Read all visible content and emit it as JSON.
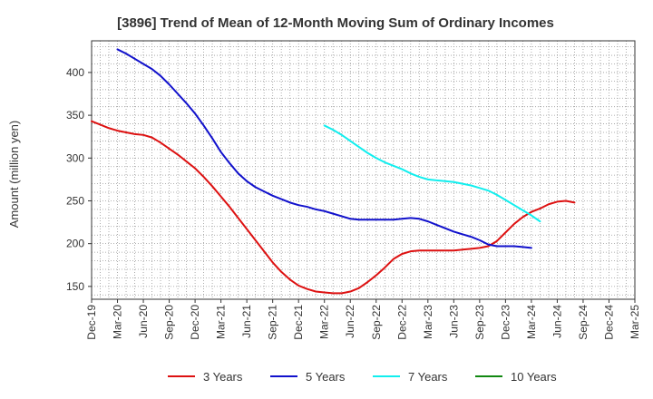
{
  "chart_data": {
    "type": "line",
    "title": "[3896]  Trend of Mean of 12-Month Moving Sum of Ordinary Incomes",
    "xlabel": "",
    "ylabel": "Amount (million yen)",
    "ylim": [
      135,
      437
    ],
    "yticks": [
      150,
      200,
      250,
      300,
      350,
      400
    ],
    "x_ticks": [
      "Dec-19",
      "Mar-20",
      "Jun-20",
      "Sep-20",
      "Dec-20",
      "Mar-21",
      "Jun-21",
      "Sep-21",
      "Dec-21",
      "Mar-22",
      "Jun-22",
      "Sep-22",
      "Dec-22",
      "Mar-23",
      "Jun-23",
      "Sep-23",
      "Dec-23",
      "Mar-24",
      "Jun-24",
      "Sep-24",
      "Dec-24",
      "Mar-25"
    ],
    "grid": true,
    "legend_position": "bottom",
    "series": [
      {
        "name": "3 Years",
        "color": "#dd1111",
        "start_index": 0,
        "values": [
          343,
          339,
          335,
          332,
          330,
          328,
          327,
          324,
          318,
          311,
          304,
          296,
          288,
          278,
          267,
          255,
          243,
          230,
          217,
          204,
          191,
          178,
          167,
          158,
          151,
          147,
          144,
          143,
          142,
          142,
          144,
          148,
          155,
          163,
          172,
          182,
          188,
          191,
          192,
          192,
          192,
          192,
          192,
          193,
          194,
          195,
          197,
          203,
          213,
          223,
          231,
          237,
          241,
          246,
          249,
          250,
          248
        ]
      },
      {
        "name": "5 Years",
        "color": "#1111cc",
        "start_index": 3,
        "values": [
          427,
          422,
          416,
          410,
          404,
          396,
          386,
          375,
          364,
          352,
          338,
          323,
          307,
          294,
          282,
          273,
          266,
          261,
          256,
          252,
          248,
          245,
          243,
          240,
          238,
          235,
          232,
          229,
          228,
          228,
          228,
          228,
          228,
          229,
          230,
          229,
          226,
          222,
          218,
          214,
          211,
          208,
          204,
          199,
          197,
          197,
          197,
          196,
          195
        ]
      },
      {
        "name": "7 Years",
        "color": "#11eeee",
        "start_index": 27,
        "values": [
          338,
          333,
          327,
          320,
          313,
          306,
          300,
          295,
          291,
          287,
          282,
          278,
          275,
          274,
          273,
          272,
          270,
          268,
          265,
          262,
          257,
          251,
          245,
          239,
          233,
          226
        ]
      },
      {
        "name": "10 Years",
        "color": "#118811",
        "start_index": 0,
        "values": []
      }
    ]
  }
}
